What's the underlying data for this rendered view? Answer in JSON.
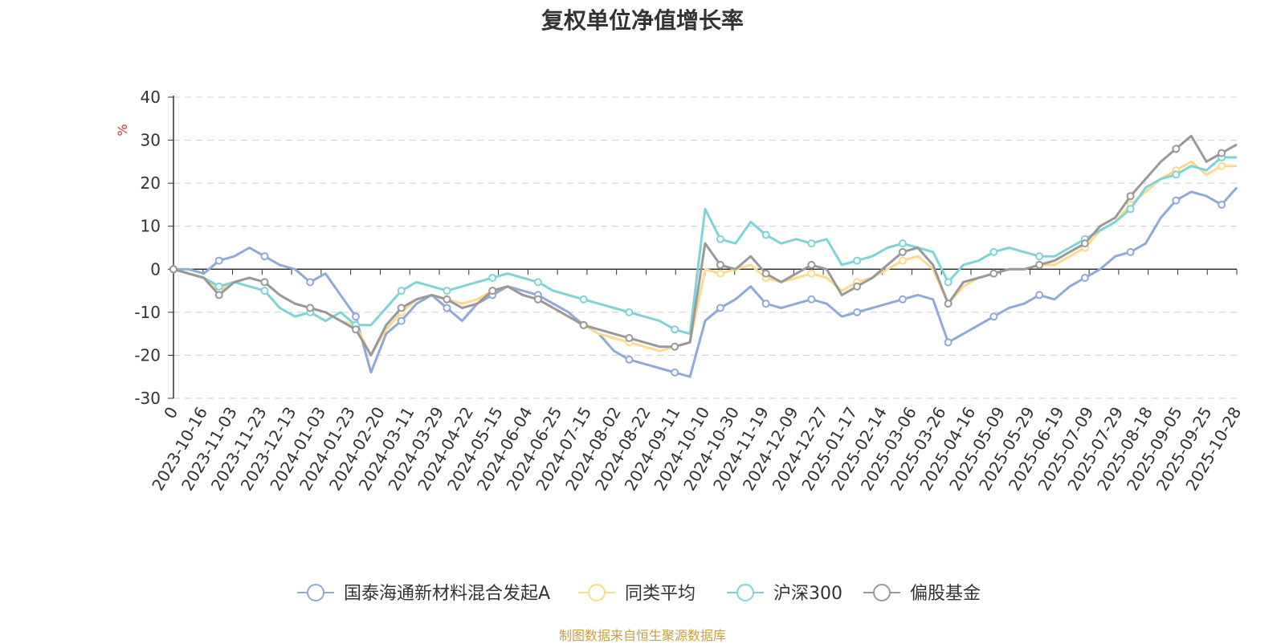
{
  "chart_data": {
    "type": "line",
    "title": "复权单位净值增长率",
    "ylabel": "%",
    "ylim": [
      -30,
      40
    ],
    "y_ticks": [
      -30,
      -20,
      -10,
      0,
      10,
      20,
      30,
      40
    ],
    "x_ticks": [
      "0",
      "2023-10-16",
      "2023-11-03",
      "2023-11-23",
      "2023-12-13",
      "2024-01-03",
      "2024-01-23",
      "2024-02-20",
      "2024-03-11",
      "2024-03-29",
      "2024-04-22",
      "2024-05-15",
      "2024-06-04",
      "2024-06-25",
      "2024-07-15",
      "2024-08-02",
      "2024-08-22",
      "2024-09-11",
      "2024-10-10",
      "2024-10-30",
      "2024-11-19",
      "2024-12-09",
      "2024-12-27",
      "2025-01-17",
      "2025-02-14",
      "2025-03-06",
      "2025-03-26",
      "2025-04-16",
      "2025-05-09",
      "2025-05-29",
      "2025-06-19",
      "2025-07-09",
      "2025-07-29",
      "2025-08-18",
      "2025-09-05",
      "2025-09-25",
      "2025-10-28"
    ],
    "grid": true,
    "legend_position": "bottom",
    "series": [
      {
        "name": "国泰海通新材料混合发起A",
        "color": "#8eaadb",
        "values": [
          0,
          0,
          -1,
          2,
          3,
          5,
          3,
          1,
          0,
          -3,
          -1,
          -6,
          -11,
          -24,
          -15,
          -12,
          -8,
          -6,
          -9,
          -12,
          -8,
          -6,
          -4,
          -5,
          -6,
          -8,
          -10,
          -13,
          -15,
          -19,
          -21,
          -22,
          -23,
          -24,
          -25,
          -12,
          -9,
          -7,
          -4,
          -8,
          -9,
          -8,
          -7,
          -8,
          -11,
          -10,
          -9,
          -8,
          -7,
          -6,
          -7,
          -17,
          -15,
          -13,
          -11,
          -9,
          -8,
          -6,
          -7,
          -4,
          -2,
          0,
          3,
          4,
          6,
          12,
          16,
          18,
          17,
          15,
          19
        ]
      },
      {
        "name": "同类平均",
        "color": "#ffd88c",
        "values": [
          0,
          -1,
          -2,
          -5,
          -3,
          -2,
          -3,
          -6,
          -8,
          -9,
          -10,
          -12,
          -13,
          -20,
          -14,
          -10,
          -7,
          -6,
          -7,
          -8,
          -7,
          -5,
          -4,
          -6,
          -7,
          -9,
          -11,
          -13,
          -15,
          -16,
          -17,
          -18,
          -19,
          -18,
          -17,
          0,
          -1,
          0,
          1,
          -2,
          -3,
          -2,
          -1,
          -2,
          -5,
          -3,
          -2,
          0,
          2,
          3,
          0,
          -8,
          -4,
          -2,
          -1,
          0,
          0,
          1,
          1,
          3,
          5,
          9,
          11,
          15,
          18,
          21,
          23,
          25,
          22,
          24,
          24
        ]
      },
      {
        "name": "沪深300",
        "color": "#7fd3d8",
        "values": [
          0,
          -1,
          -2,
          -4,
          -3,
          -4,
          -5,
          -9,
          -11,
          -10,
          -12,
          -10,
          -13,
          -13,
          -9,
          -5,
          -3,
          -4,
          -5,
          -4,
          -3,
          -2,
          -1,
          -2,
          -3,
          -5,
          -6,
          -7,
          -8,
          -9,
          -10,
          -11,
          -12,
          -14,
          -15,
          14,
          7,
          6,
          11,
          8,
          6,
          7,
          6,
          7,
          1,
          2,
          3,
          5,
          6,
          5,
          4,
          -3,
          1,
          2,
          4,
          5,
          4,
          3,
          3,
          5,
          7,
          9,
          11,
          14,
          19,
          21,
          22,
          24,
          23,
          26,
          26
        ]
      },
      {
        "name": "偏股基金",
        "color": "#999999",
        "values": [
          0,
          -1,
          -2,
          -6,
          -3,
          -2,
          -3,
          -6,
          -8,
          -9,
          -10,
          -12,
          -14,
          -20,
          -13,
          -9,
          -7,
          -6,
          -7,
          -9,
          -8,
          -5,
          -4,
          -6,
          -7,
          -9,
          -11,
          -13,
          -14,
          -15,
          -16,
          -17,
          -18,
          -18,
          -17,
          6,
          1,
          0,
          3,
          -1,
          -3,
          -1,
          1,
          0,
          -6,
          -4,
          -2,
          1,
          4,
          5,
          1,
          -8,
          -3,
          -2,
          -1,
          0,
          0,
          1,
          2,
          4,
          6,
          10,
          12,
          17,
          21,
          25,
          28,
          31,
          25,
          27,
          29
        ]
      }
    ]
  },
  "source_text": "制图数据来自恒生聚源数据库"
}
